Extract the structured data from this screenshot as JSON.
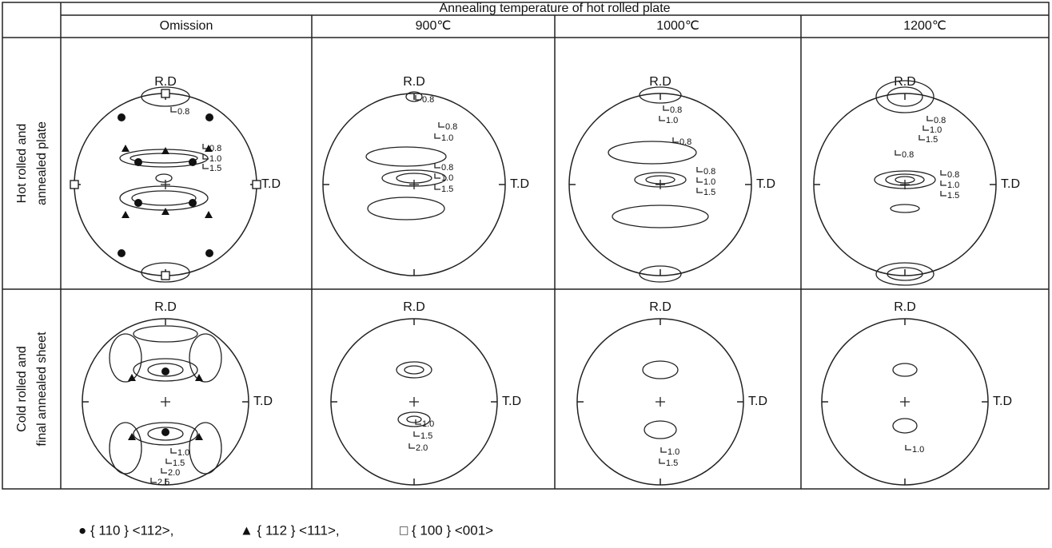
{
  "header": {
    "title": "Annealing temperature of hot rolled plate",
    "columns": [
      "Omission",
      "900℃",
      "1000℃",
      "1200℃"
    ]
  },
  "rows": [
    {
      "label": [
        "Hot rolled and",
        "annealed plate"
      ],
      "panels": [
        {
          "rd": "R.D",
          "td": "T.D",
          "contours": [
            "0.8",
            "0.8",
            "1.0",
            "1.5"
          ]
        },
        {
          "rd": "R.D",
          "td": "T.D",
          "contours": [
            "0.8",
            "0.8",
            "1.0",
            "0.8",
            "1.0",
            "1.5"
          ]
        },
        {
          "rd": "R.D",
          "td": "T.D",
          "contours": [
            "0.8",
            "1.0",
            "0.8",
            "0.8",
            "1.0",
            "1.5"
          ]
        },
        {
          "rd": "R.D",
          "td": "T.D",
          "contours": [
            "0.8",
            "1.0",
            "1.5",
            "0.8",
            "0.8",
            "1.0",
            "1.5"
          ]
        }
      ]
    },
    {
      "label": [
        "Cold rolled and",
        "final annealed sheet"
      ],
      "panels": [
        {
          "rd": "R.D",
          "td": "T.D",
          "contours": [
            "1.0",
            "1.5",
            "2.0",
            "2.5"
          ]
        },
        {
          "rd": "R.D",
          "td": "T.D",
          "contours": [
            "1.0",
            "1.5",
            "2.0"
          ]
        },
        {
          "rd": "R.D",
          "td": "T.D",
          "contours": [
            "1.0",
            "1.5"
          ]
        },
        {
          "rd": "R.D",
          "td": "T.D",
          "contours": [
            "1.0"
          ]
        }
      ]
    }
  ],
  "legend": [
    "● { 110 } <112>,",
    "▲ { 112 } <111>,",
    "□ { 100 } <001>"
  ]
}
